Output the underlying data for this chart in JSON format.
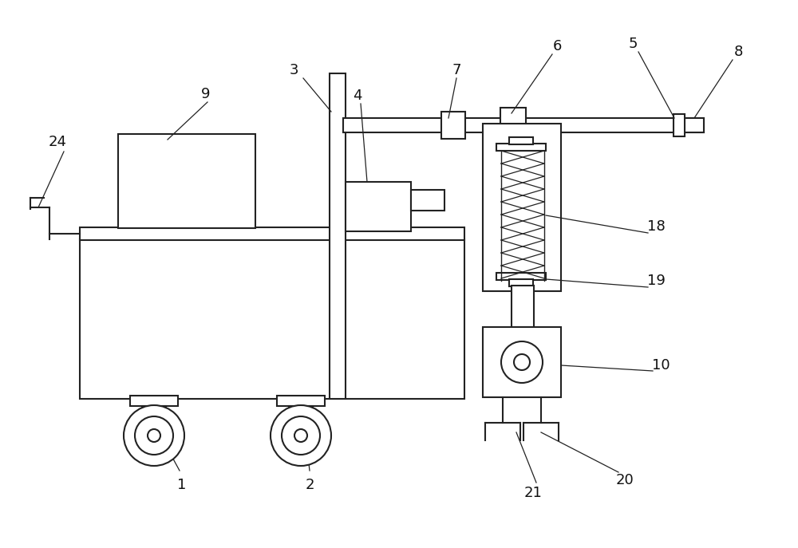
{
  "bg_color": "#ffffff",
  "line_color": "#222222",
  "line_width": 1.5
}
